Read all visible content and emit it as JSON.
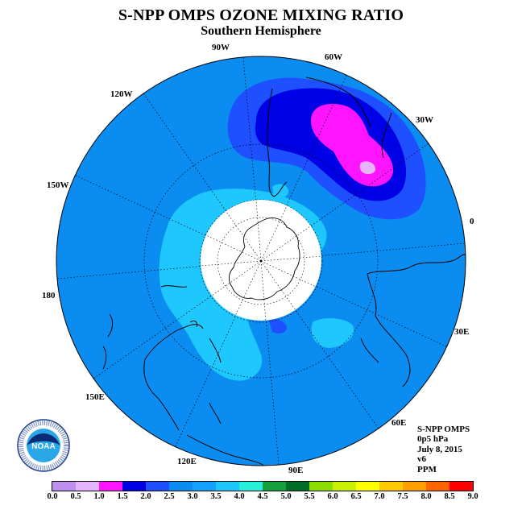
{
  "title": "S-NPP OMPS OZONE MIXING RATIO",
  "subtitle": "Southern Hemisphere",
  "map": {
    "projection": "south polar stereographic",
    "longitude_labels": [
      "90W",
      "60W",
      "30W",
      "0",
      "30E",
      "60E",
      "90E",
      "120E",
      "150E",
      "180",
      "150W",
      "120W"
    ],
    "data_field_note_colors": {
      "background": "#0a8cf0",
      "light": "#1ec8ff",
      "dark": "#0000e6",
      "magenta": "#ff14ff",
      "lavender": "#e6b4ff"
    }
  },
  "logo": {
    "text": "NOAA"
  },
  "info": {
    "instrument": "S-NPP OMPS",
    "level": "0p5 hPa",
    "date": "July 8, 2015",
    "version": "v6",
    "units": "PPM"
  },
  "colorbar": {
    "tick_labels": [
      "0.0",
      "0.5",
      "1.0",
      "1.5",
      "2.0",
      "2.5",
      "3.0",
      "3.5",
      "4.0",
      "4.5",
      "5.0",
      "5.5",
      "6.0",
      "6.5",
      "7.0",
      "7.5",
      "8.0",
      "8.5",
      "9.0"
    ],
    "colors": [
      "#c090f0",
      "#e6b4ff",
      "#ff14ff",
      "#0000e6",
      "#1e50ff",
      "#0a8cf0",
      "#14a0ff",
      "#1ec8ff",
      "#28f0d8",
      "#14a03c",
      "#006e28",
      "#8cdc00",
      "#c8f000",
      "#ffff00",
      "#ffc800",
      "#ffa000",
      "#ff6400",
      "#ff0000",
      "#8c5a3c"
    ]
  }
}
